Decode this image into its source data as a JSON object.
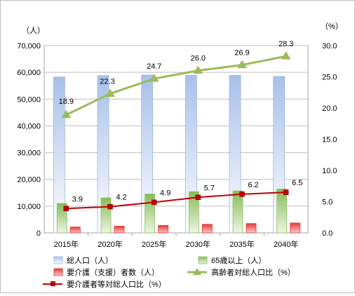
{
  "chart_data": {
    "type": "bar",
    "categories": [
      "2015年",
      "2020年",
      "2025年",
      "2030年",
      "2035年",
      "2040年"
    ],
    "y_left_unit": "（人）",
    "y_right_unit": "（%）",
    "ylim_left": [
      0,
      70000
    ],
    "ylim_right": [
      0,
      30
    ],
    "yticks_left": [
      "0",
      "10,000",
      "20,000",
      "30,000",
      "40,000",
      "50,000",
      "60,000",
      "70,000"
    ],
    "yticks_right": [
      "0.0",
      "5.0",
      "10.0",
      "15.0",
      "20.0",
      "25.0",
      "30.0"
    ],
    "grid": true,
    "legend_position": "bottom",
    "bar_series": [
      {
        "name": "総人口（人）",
        "axis": "left",
        "values": [
          58300,
          58800,
          59000,
          58900,
          58900,
          58500
        ],
        "color": "#9db6e0"
      },
      {
        "name": "65歳以上（人）",
        "axis": "left",
        "values": [
          11000,
          13100,
          14500,
          15400,
          15700,
          16400
        ],
        "color": "#8cc063"
      },
      {
        "name": "要介護（支援）者数（人）",
        "axis": "left",
        "values": [
          2200,
          2500,
          2800,
          3200,
          3500,
          3700
        ],
        "color": "#e03a3a"
      }
    ],
    "line_series": [
      {
        "name": "高齢者対総人口比（%）",
        "axis": "right",
        "values": [
          18.9,
          22.3,
          24.7,
          26.0,
          26.9,
          28.3
        ],
        "labels": [
          "18.9",
          "22.3",
          "24.7",
          "26.0",
          "26.9",
          "28.3"
        ],
        "color": "#9bbb59",
        "marker": "triangle"
      },
      {
        "name": "要介護者等対総人口比（%）",
        "axis": "right",
        "values": [
          3.9,
          4.2,
          4.9,
          5.7,
          6.2,
          6.5
        ],
        "labels": [
          "3.9",
          "4.2",
          "4.9",
          "5.7",
          "6.2",
          "6.5"
        ],
        "color": "#c00000",
        "marker": "square"
      }
    ]
  }
}
